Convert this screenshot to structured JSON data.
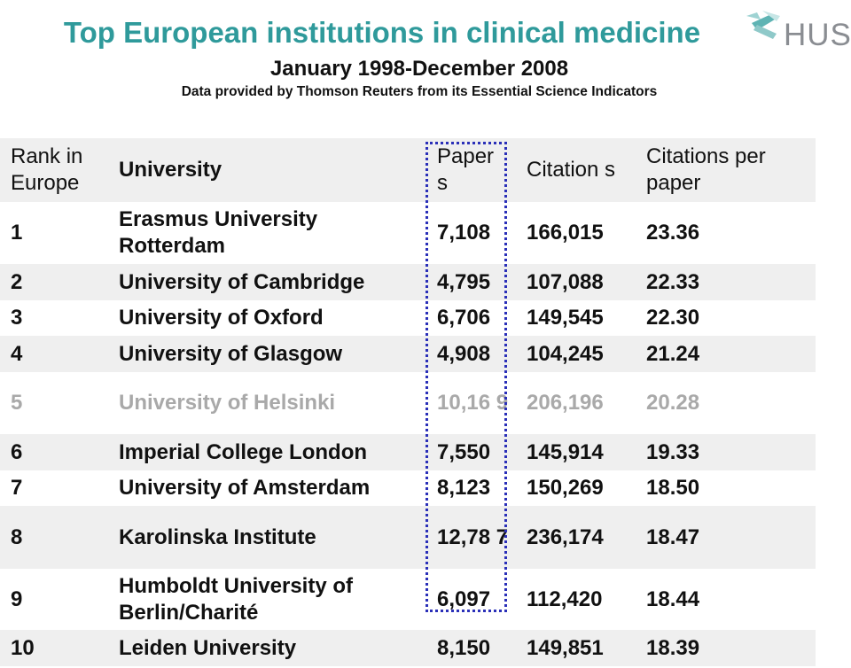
{
  "header": {
    "title": "Top European institutions in clinical medicine",
    "subtitle": "January 1998-December 2008",
    "source": "Data provided by Thomson Reuters from its Essential Science Indicators",
    "logo_text": "HUS"
  },
  "table": {
    "columns": {
      "rank": "Rank in Europe",
      "university": "University",
      "papers": "Paper s",
      "citations": "Citation s",
      "citations_per_paper": "Citations per paper"
    },
    "rows": [
      {
        "rank": "1",
        "university": "Erasmus University Rotterdam",
        "papers": "7,108",
        "citations": "166,015",
        "cpp": "23.36"
      },
      {
        "rank": "2",
        "university": "University of Cambridge",
        "papers": "4,795",
        "citations": "107,088",
        "cpp": "22.33"
      },
      {
        "rank": "3",
        "university": "University of Oxford",
        "papers": "6,706",
        "citations": "149,545",
        "cpp": "22.30"
      },
      {
        "rank": "4",
        "university": "University of Glasgow",
        "papers": "4,908",
        "citations": "104,245",
        "cpp": "21.24"
      },
      {
        "rank": "5",
        "university": "University of Helsinki",
        "papers": "10,16 9",
        "citations": "206,196",
        "cpp": "20.28"
      },
      {
        "rank": "6",
        "university": "Imperial College London",
        "papers": "7,550",
        "citations": "145,914",
        "cpp": "19.33"
      },
      {
        "rank": "7",
        "university": "University of Amsterdam",
        "papers": "8,123",
        "citations": "150,269",
        "cpp": "18.50"
      },
      {
        "rank": "8",
        "university": "Karolinska Institute",
        "papers": "12,78 7",
        "citations": "236,174",
        "cpp": "18.47"
      },
      {
        "rank": "9",
        "university": "Humboldt University of Berlin/Charité",
        "papers": "6,097",
        "citations": "112,420",
        "cpp": "18.44"
      },
      {
        "rank": "10",
        "university": "Leiden University",
        "papers": "8,150",
        "citations": "149,851",
        "cpp": "18.39"
      }
    ]
  },
  "colors": {
    "title": "#2f9a9b",
    "highlight_border": "#2a2fb8",
    "muted_row_text": "#a9a9a9",
    "shaded_row": "#efefef"
  }
}
